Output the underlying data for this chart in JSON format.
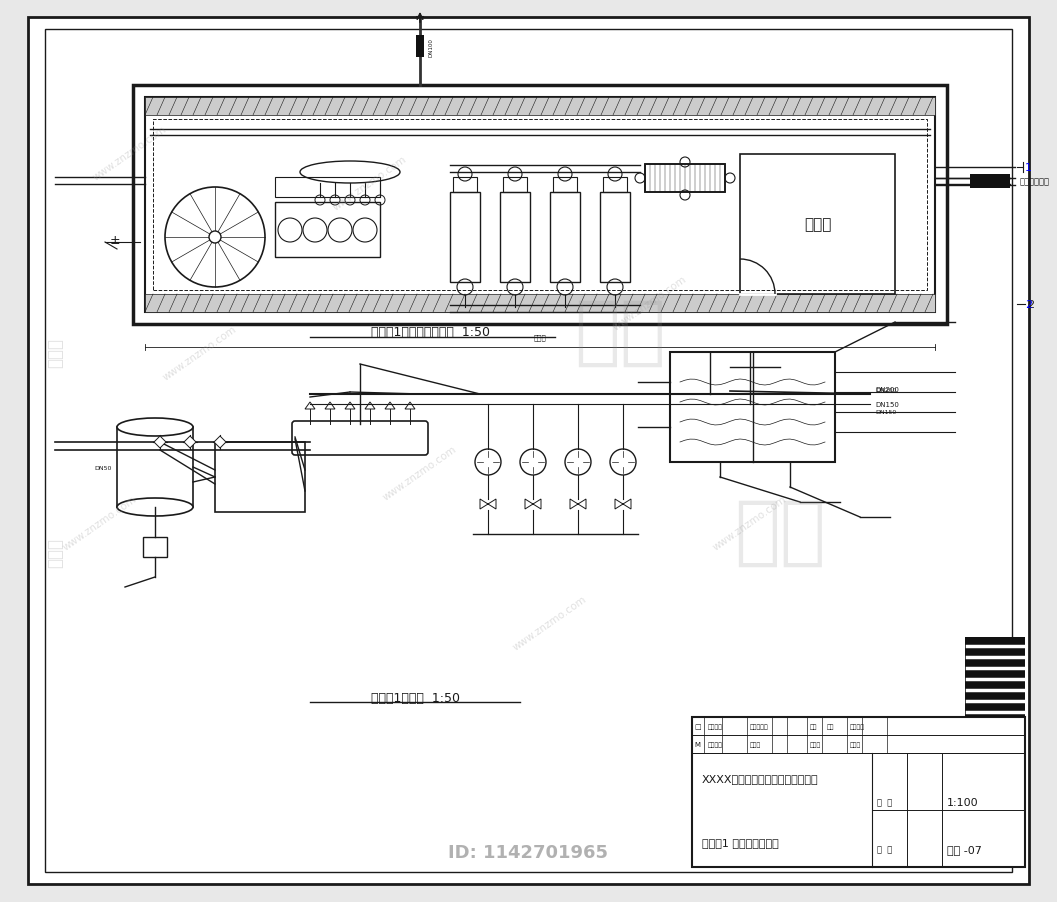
{
  "bg_color": "#e8e8e8",
  "paper_color": "#ffffff",
  "line_color": "#1a1a1a",
  "border_color": "#1a1a1a",
  "title_block": {
    "project_name": "XXXX供热外网及换热站施工图设计",
    "drawing_name": "换热站1 平面图，系统图",
    "scale": "1:100",
    "drawing_no": "暖施 -07"
  },
  "caption1": "热力站1管线平面布置图  1:50",
  "caption2": "热力站1系统图  1:50",
  "watermark_text": "www.znzmo.com",
  "id_text": "ID: 1142701965",
  "outer_border": [
    28,
    18,
    1001,
    867
  ],
  "inner_border": [
    45,
    30,
    967,
    843
  ]
}
